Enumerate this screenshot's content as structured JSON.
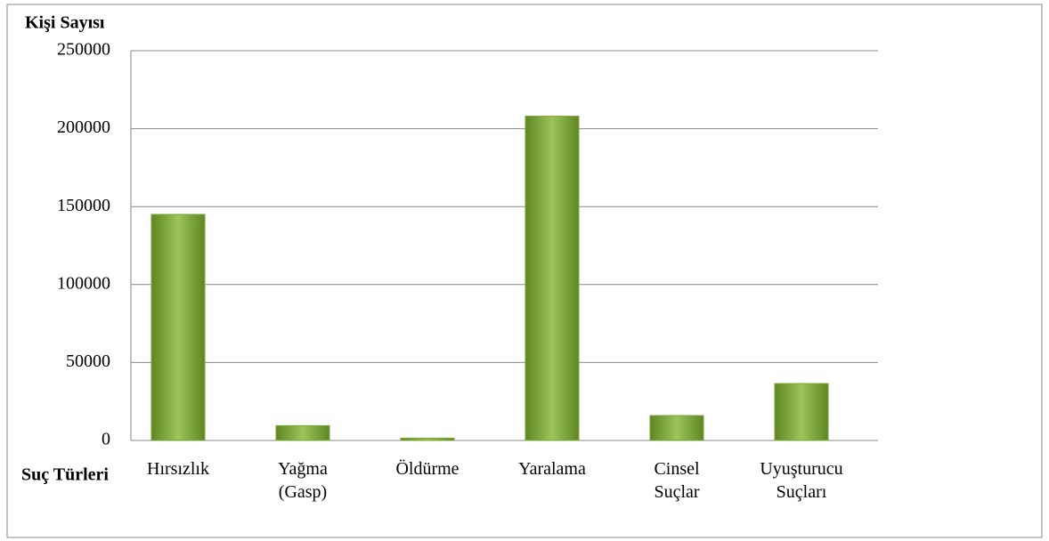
{
  "chart_data": {
    "type": "bar",
    "y_label": "Kişi Sayısı",
    "x_label": "Suç Türleri",
    "categories": [
      "Hırsızlık",
      "Yağma (Gasp)",
      "Öldürme",
      "Yaralama",
      "Cinsel Suçlar",
      "Uyuşturucu Suçları"
    ],
    "values": [
      145000,
      9500,
      1500,
      208000,
      16000,
      36500
    ],
    "color": "#7aa635",
    "ylim": [
      0,
      250000
    ],
    "yticks": [
      0,
      50000,
      100000,
      150000,
      200000,
      250000
    ],
    "grid": true
  }
}
